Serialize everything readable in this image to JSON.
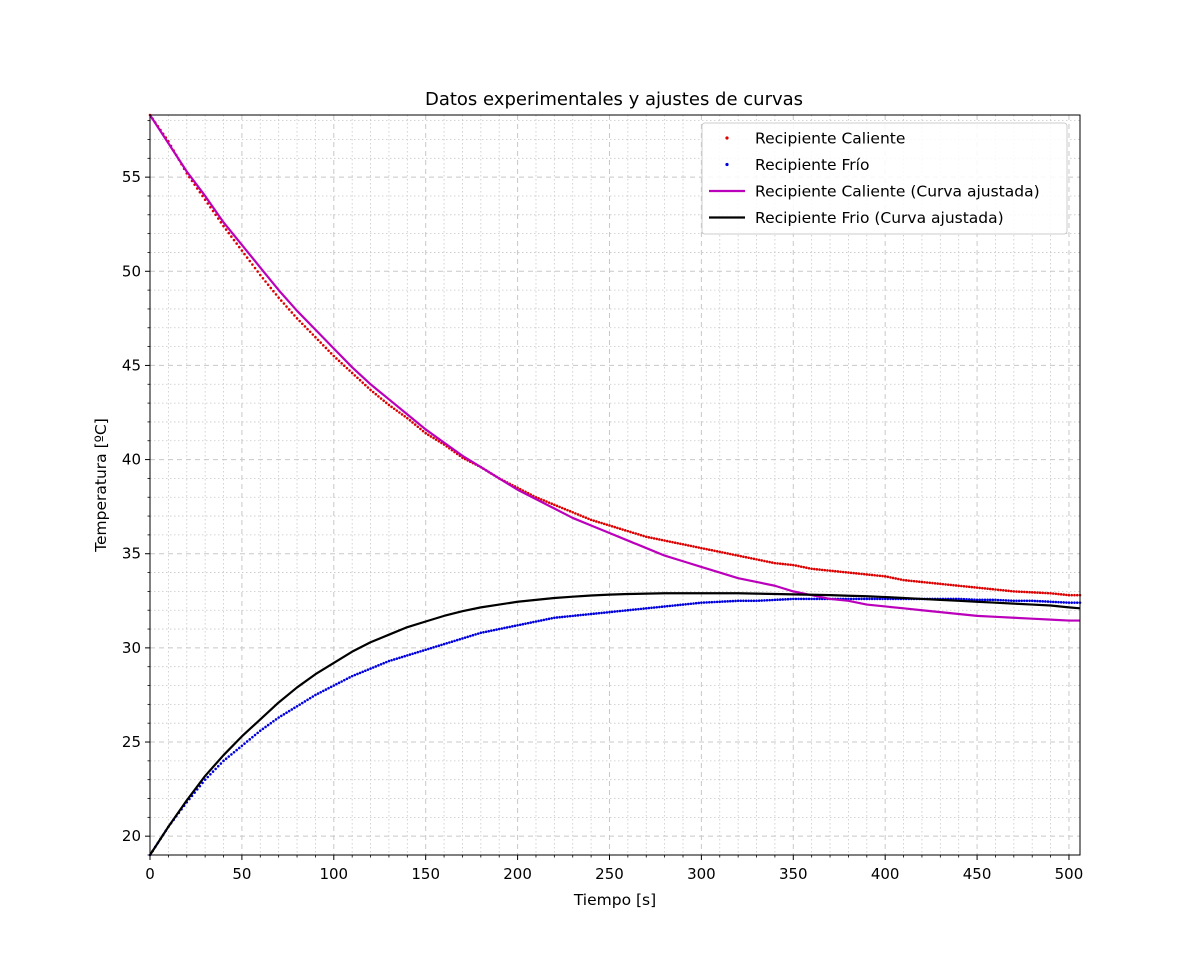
{
  "chart_data": {
    "type": "scatter",
    "title": "Datos experimentales y ajustes de curvas",
    "xlabel": "Tiempo [s]",
    "ylabel": "Temperatura [ºC]",
    "xlim": [
      0,
      506
    ],
    "ylim": [
      19,
      58.3
    ],
    "xticks": [
      0,
      50,
      100,
      150,
      200,
      250,
      300,
      350,
      400,
      450,
      500
    ],
    "yticks": [
      20,
      25,
      30,
      35,
      40,
      45,
      50,
      55
    ],
    "grid": {
      "major": "dashed",
      "minor": "dotted"
    },
    "legend_position": "top-right",
    "series": [
      {
        "name": "Recipiente Caliente",
        "style": "dots",
        "color": "#dd0000",
        "x": [
          0,
          10,
          20,
          30,
          40,
          50,
          60,
          70,
          80,
          90,
          100,
          110,
          120,
          130,
          140,
          150,
          160,
          170,
          180,
          190,
          200,
          210,
          220,
          230,
          240,
          250,
          260,
          270,
          280,
          290,
          300,
          310,
          320,
          330,
          340,
          350,
          360,
          370,
          380,
          390,
          400,
          410,
          420,
          430,
          440,
          450,
          460,
          470,
          480,
          490,
          500,
          506
        ],
        "y": [
          58.3,
          56.9,
          55.2,
          53.8,
          52.4,
          51.1,
          49.8,
          48.6,
          47.5,
          46.5,
          45.5,
          44.6,
          43.7,
          42.9,
          42.2,
          41.4,
          40.8,
          40.1,
          39.6,
          39.0,
          38.5,
          38.0,
          37.6,
          37.2,
          36.8,
          36.5,
          36.2,
          35.9,
          35.7,
          35.5,
          35.3,
          35.1,
          34.9,
          34.7,
          34.5,
          34.4,
          34.2,
          34.1,
          34.0,
          33.9,
          33.8,
          33.6,
          33.5,
          33.4,
          33.3,
          33.2,
          33.1,
          33.0,
          32.95,
          32.9,
          32.8,
          32.8
        ]
      },
      {
        "name": "Recipiente Frío",
        "style": "dots",
        "color": "#0000dd",
        "x": [
          0,
          10,
          20,
          30,
          40,
          50,
          60,
          70,
          80,
          90,
          100,
          110,
          120,
          130,
          140,
          150,
          160,
          170,
          180,
          190,
          200,
          210,
          220,
          230,
          240,
          250,
          260,
          270,
          280,
          290,
          300,
          310,
          320,
          330,
          340,
          350,
          360,
          370,
          380,
          390,
          400,
          410,
          420,
          430,
          440,
          450,
          460,
          470,
          480,
          490,
          500,
          506
        ],
        "y": [
          19.0,
          20.5,
          21.8,
          23.0,
          24.0,
          24.8,
          25.6,
          26.3,
          26.9,
          27.5,
          28.0,
          28.5,
          28.9,
          29.3,
          29.6,
          29.9,
          30.2,
          30.5,
          30.8,
          31.0,
          31.2,
          31.4,
          31.6,
          31.7,
          31.8,
          31.9,
          32.0,
          32.1,
          32.2,
          32.3,
          32.4,
          32.45,
          32.5,
          32.5,
          32.55,
          32.6,
          32.6,
          32.6,
          32.6,
          32.6,
          32.6,
          32.6,
          32.6,
          32.6,
          32.6,
          32.55,
          32.55,
          32.5,
          32.5,
          32.45,
          32.4,
          32.4
        ]
      },
      {
        "name": "Recipiente Caliente (Curva ajustada)",
        "style": "line",
        "color": "#bb00bb",
        "x": [
          0,
          10,
          20,
          30,
          40,
          50,
          60,
          70,
          80,
          90,
          100,
          110,
          120,
          130,
          140,
          150,
          160,
          170,
          180,
          190,
          200,
          210,
          220,
          230,
          240,
          250,
          260,
          270,
          280,
          290,
          300,
          310,
          320,
          330,
          340,
          350,
          360,
          370,
          380,
          390,
          400,
          410,
          420,
          430,
          440,
          450,
          460,
          470,
          480,
          490,
          500,
          506
        ],
        "y": [
          58.3,
          56.8,
          55.3,
          54.0,
          52.6,
          51.4,
          50.2,
          49.0,
          47.9,
          46.9,
          45.9,
          44.9,
          44.0,
          43.2,
          42.4,
          41.6,
          40.9,
          40.2,
          39.6,
          39.0,
          38.4,
          37.9,
          37.4,
          36.9,
          36.5,
          36.1,
          35.7,
          35.3,
          34.9,
          34.6,
          34.3,
          34.0,
          33.7,
          33.5,
          33.3,
          33.0,
          32.8,
          32.6,
          32.5,
          32.3,
          32.2,
          32.1,
          32.0,
          31.9,
          31.8,
          31.7,
          31.65,
          31.6,
          31.55,
          31.5,
          31.45,
          31.45
        ]
      },
      {
        "name": "Recipiente Frio (Curva ajustada)",
        "style": "line",
        "color": "#000000",
        "x": [
          0,
          10,
          20,
          30,
          40,
          50,
          60,
          70,
          80,
          90,
          100,
          110,
          120,
          130,
          140,
          150,
          160,
          170,
          180,
          190,
          200,
          210,
          220,
          230,
          240,
          250,
          260,
          270,
          280,
          290,
          300,
          310,
          320,
          330,
          340,
          350,
          360,
          370,
          380,
          390,
          400,
          410,
          420,
          430,
          440,
          450,
          460,
          470,
          480,
          490,
          500,
          506
        ],
        "y": [
          19.0,
          20.5,
          21.9,
          23.2,
          24.3,
          25.3,
          26.2,
          27.1,
          27.9,
          28.6,
          29.2,
          29.8,
          30.3,
          30.7,
          31.1,
          31.4,
          31.7,
          31.95,
          32.15,
          32.3,
          32.45,
          32.55,
          32.65,
          32.72,
          32.78,
          32.83,
          32.86,
          32.88,
          32.9,
          32.9,
          32.9,
          32.9,
          32.9,
          32.88,
          32.86,
          32.84,
          32.82,
          32.8,
          32.77,
          32.74,
          32.7,
          32.65,
          32.6,
          32.55,
          32.5,
          32.45,
          32.4,
          32.35,
          32.3,
          32.25,
          32.15,
          32.1
        ]
      }
    ]
  }
}
